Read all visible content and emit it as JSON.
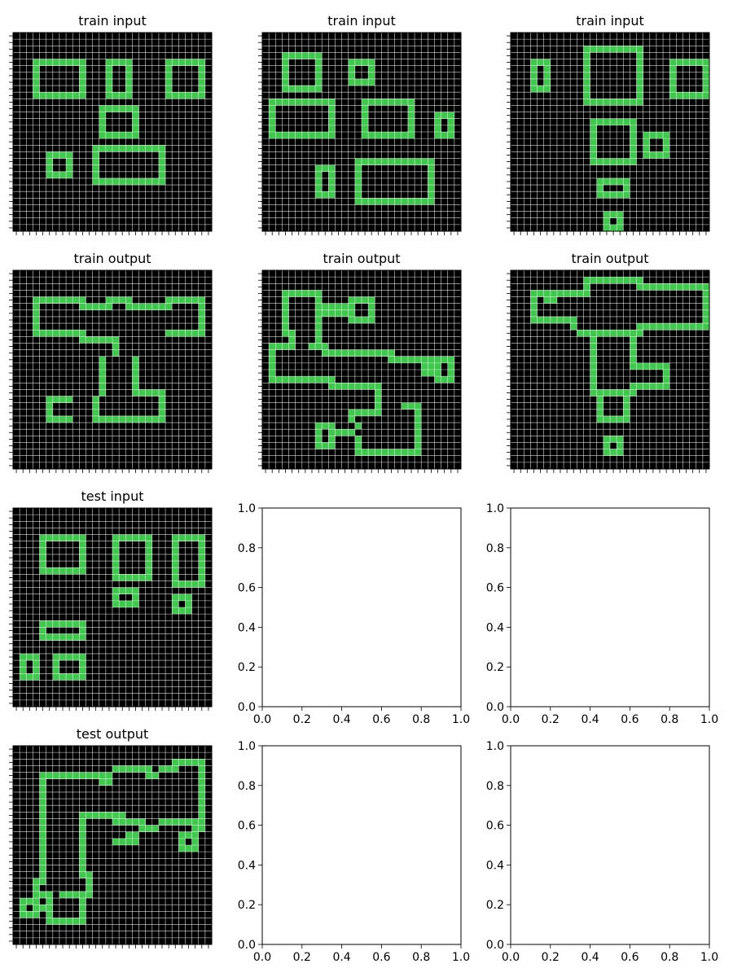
{
  "colors": {
    "fill": "#3ec94d",
    "background": "#000000",
    "gridline": "#ffffff"
  },
  "panels": [
    {
      "title": "train input",
      "kind": "grid",
      "rows": [
        "000000000000000000000000000000",
        "000000000000000000000000000000",
        "000000000000000000000000000000",
        "000000000000000000000000000000",
        "000111111110001111000001111110",
        "000100000010001001000001000010",
        "000100000010001001000001000010",
        "000100000010001001000001000010",
        "000100000010001001000001000010",
        "000111111110001111000001111110",
        "000000000000000000000000000000",
        "000000000000011111100000000000",
        "000000000000010000100000000000",
        "000000000000010000100000000000",
        "000000000000010000100000000000",
        "000000000000011111100000000000",
        "000000000000000000000000000000",
        "000000000000111111111110000000",
        "000001111000100000000010000000",
        "000001001000100000000010000000",
        "000001001000100000000010000000",
        "000001111000100000000010000000",
        "000000000000111111111110000000",
        "000000000000000000000000000000",
        "000000000000000000000000000000",
        "000000000000000000000000000000",
        "000000000000000000000000000000",
        "000000000000000000000000000000",
        "000000000000000000000000000000",
        "000000000000000000000000000000"
      ]
    },
    {
      "title": "train input",
      "kind": "grid",
      "rows": [
        "000000000000000000000000000000",
        "000000000000000000000000000000",
        "000000000000000000000000000000",
        "000111111000000000000000000000",
        "000100001000011110000000000000",
        "000100001000010010000000000000",
        "000100001000010010000000000000",
        "000100001000011110000000000000",
        "000111111000000000000000000000",
        "000000000000000000000000000000",
        "011111111110000111111110000000",
        "010000000010000100000010000000",
        "010000000010000100000010001110",
        "010000000010000100000010001010",
        "010000000010000100000010001010",
        "011111111110000111111110001110",
        "000000000000000000000000000000",
        "000000000000000000000000000000",
        "000000000000000000000000000000",
        "000000000000001111111111110000",
        "000000001110001000000000010000",
        "000000001010001000000000010000",
        "000000001010001000000000010000",
        "000000001010001000000000010000",
        "000000001110001000000000010000",
        "000000000000001111111111110000",
        "000000000000000000000000000000",
        "000000000000000000000000000000",
        "000000000000000000000000000000",
        "000000000000000000000000000000"
      ]
    },
    {
      "title": "train input",
      "kind": "grid",
      "rows": [
        "000000000000000000000000000000",
        "000000000000000000000000000000",
        "000000000001111111110000000000",
        "000000000001000000010000000000",
        "000111000001000000010000111111",
        "000101000001000000010000100001",
        "000101000001000000010000100001",
        "000101000001000000010000100001",
        "000111000001000000010000100001",
        "000000000001000000010000111111",
        "000000000001111111110000000000",
        "000000000000000000000000000000",
        "000000000000000000000000000000",
        "000000000000111111100000000000",
        "000000000000100000100000000000",
        "000000000000100000101111000000",
        "000000000000100000101001000000",
        "000000000000100000101001000000",
        "000000000000100000101111000000",
        "000000000000111111100000000000",
        "000000000000000000000000000000",
        "000000000000000000000000000000",
        "000000000000011111000000000000",
        "000000000000010001000000000000",
        "000000000000011111000000000000",
        "000000000000000000000000000000",
        "000000000000000000000000000000",
        "000000000000001110000000000000",
        "000000000000001010000000000000",
        "000000000000001110000000000000"
      ]
    },
    {
      "title": "train output",
      "kind": "grid",
      "rows": [
        "000000000000000000000000000000",
        "000000000000000000000000000000",
        "000000000000000000000000000000",
        "000000000000000000000000000000",
        "000111111110001111000001111110",
        "000100000011111001111111000010",
        "000100000000000000000000000010",
        "000100000000000000000000000010",
        "000100000000000000000000000010",
        "000111111110000000000001111110",
        "000000000011111100000000000000",
        "000000000000000100000000000000",
        "000000000000000100000000000000",
        "000000000000010000100000000000",
        "000000000000010000100000000000",
        "000000000000010000100000000000",
        "000000000000010000100000000000",
        "000000000000010000100000000000",
        "000000000000010000111110000000",
        "000001111000100000000010000000",
        "000001000000100000000010000000",
        "000001000000100000000010000000",
        "000001111000111111111110000000",
        "000000000000000000000000000000",
        "000000000000000000000000000000",
        "000000000000000000000000000000",
        "000000000000000000000000000000",
        "000000000000000000000000000000",
        "000000000000000000000000000000",
        "000000000000000000000000000000"
      ]
    },
    {
      "title": "train output",
      "kind": "grid",
      "rows": [
        "000000000000000000000000000000",
        "000000000000000000000000000000",
        "000000000000000000000000000000",
        "000111111000000000000000000000",
        "000100001000011110000000000000",
        "000100001111110010000000000000",
        "000100001111110010000000000000",
        "000100001000011110000000000000",
        "000100001000000000000000000000",
        "000110001000000000000000000000",
        "000010001000000000000000000000",
        "011110011100000000000000000000",
        "010000000111111111110000000000",
        "010000000000000000011111111110",
        "010000000000000000000000111010",
        "010000000000000000000000111010",
        "011111111110000000000000001110",
        "000000000011111111000000000000",
        "000000000000000001000000000000",
        "000000000000000001000000000000",
        "000000000000000001000111000000",
        "000000000000011111000001000000",
        "000000000000010000000001000000",
        "000000001110001000000001000000",
        "000000001011110000000001000000",
        "000000001010001000000001000000",
        "000000001110001000000001000000",
        "000000000000001111111111000000",
        "000000000000000000000000000000",
        "000000000000000000000000000000"
      ]
    },
    {
      "title": "train output",
      "kind": "grid",
      "rows": [
        "000000000000000000000000000000",
        "000000000001111111110000000000",
        "000000000001000000011111111111",
        "000111111111000000000000000001",
        "000101100000000000000000000001",
        "000100000000000000000000000001",
        "000100000000000000000000000001",
        "000111111100000000000000000001",
        "000000000100000000011111111111",
        "000000000011111111110000000000",
        "000000000000100000100000000000",
        "000000000000100000100000000000",
        "000000000000100000100000000000",
        "000000000000100000100000000000",
        "000000000000100000111111000000",
        "000000000000100000000001000000",
        "000000000000100000000001000000",
        "000000000000100000111111000000",
        "000000000000111111100000000000",
        "000000000000010001000000000000",
        "000000000000010001000000000000",
        "000000000000010001000000000000",
        "000000000000011111000000000000",
        "000000000000000000000000000000",
        "000000000000000000000000000000",
        "000000000000001110000000000000",
        "000000000000001010000000000000",
        "000000000000001110000000000000",
        "000000000000000000000000000000",
        "000000000000000000000000000000"
      ]
    },
    {
      "title": "test input",
      "kind": "grid",
      "rows": [
        "000000000000000000000000000000",
        "000000000000000000000000000000",
        "000000000000000000000000000000",
        "000000000000000000000000000000",
        "000011111110000111111000111110",
        "000010000010000100001000100010",
        "000010000010000100001000100010",
        "000010000010000100001000100010",
        "000010000010000100001000100010",
        "000011111110000100001000100010",
        "000000000000000111111000100010",
        "000000000000000000000000111110",
        "000000000000000111100000000000",
        "000000000000000100100000111000",
        "000000000000000111100000101000",
        "000000000000000000000000111000",
        "000000000000000000000000000000",
        "000011111110000000000000000000",
        "000010000010000000000000000000",
        "000011111110000000000000000000",
        "000000000000000000000000000000",
        "000000000000000000000000000000",
        "011100111110000000000000000000",
        "010100100010000000000000000000",
        "010100100010000000000000000000",
        "011100111110000000000000000000",
        "000000000000000000000000000000",
        "000000000000000000000000000000",
        "000000000000000000000000000000",
        "000000000000000000000000000000"
      ]
    },
    {
      "title": "",
      "kind": "empty",
      "xticks": [
        "0.0",
        "0.2",
        "0.4",
        "0.6",
        "0.8",
        "1.0"
      ],
      "yticks": [
        "0.0",
        "0.2",
        "0.4",
        "0.6",
        "0.8",
        "1.0"
      ]
    },
    {
      "title": "",
      "kind": "empty",
      "xticks": [
        "0.0",
        "0.2",
        "0.4",
        "0.6",
        "0.8",
        "1.0"
      ],
      "yticks": [
        "0.0",
        "0.2",
        "0.4",
        "0.6",
        "0.8",
        "1.0"
      ]
    },
    {
      "title": "test output",
      "kind": "grid",
      "rows": [
        "000000000000000000000000000000",
        "000000000000000000000000000000",
        "000000000000000000000000111110",
        "000000000000000111111011100010",
        "000011111111111000001100000010",
        "000010000000011000000000000010",
        "000010000000000000000000000010",
        "000010000000000000000000000010",
        "000010000000000000000000000010",
        "000010000000000000000000000010",
        "000010000011111110000000000010",
        "000010000010000111110011111110",
        "000010000010000000011100000110",
        "000010000010000001100000011100",
        "000010000010000111100000010100",
        "000010000010000000000000011100",
        "000010000010000000000000000000",
        "000010000010000000000000000000",
        "000010000010000000000000000000",
        "000010000011000000000000000000",
        "000110000001000000000000000000",
        "000100000001000000000000000000",
        "000111011111000000000000000000",
        "011101000010000000000000000000",
        "010111000010000000000000000000",
        "011101000010000000000000000000",
        "000001111110000000000000000000",
        "000000000000000000000000000000",
        "000000000000000000000000000000",
        "000000000000000000000000000000"
      ]
    },
    {
      "title": "",
      "kind": "empty",
      "xticks": [
        "0.0",
        "0.2",
        "0.4",
        "0.6",
        "0.8",
        "1.0"
      ],
      "yticks": [
        "0.0",
        "0.2",
        "0.4",
        "0.6",
        "0.8",
        "1.0"
      ]
    },
    {
      "title": "",
      "kind": "empty",
      "xticks": [
        "0.0",
        "0.2",
        "0.4",
        "0.6",
        "0.8",
        "1.0"
      ],
      "yticks": [
        "0.0",
        "0.2",
        "0.4",
        "0.6",
        "0.8",
        "1.0"
      ]
    }
  ]
}
